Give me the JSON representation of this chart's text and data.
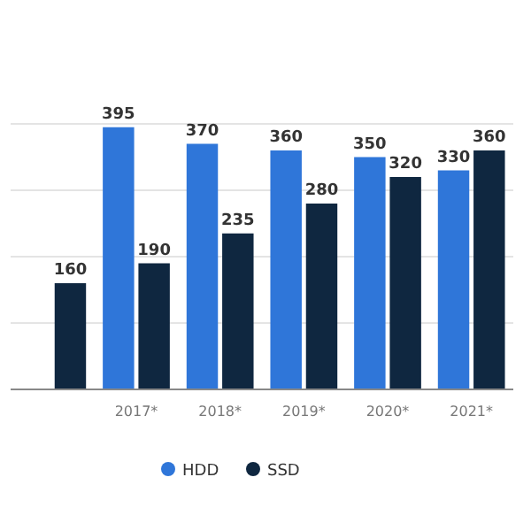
{
  "chart_data": {
    "type": "bar",
    "categories": [
      null,
      "2017*",
      "2018*",
      "2019*",
      "2020*",
      "2021*"
    ],
    "series": [
      {
        "name": "HDD",
        "color": "#2f76d9",
        "values": [
          null,
          395,
          370,
          360,
          350,
          330
        ]
      },
      {
        "name": "SSD",
        "color": "#0f2740",
        "values": [
          160,
          190,
          235,
          280,
          320,
          360
        ]
      }
    ],
    "ylim": [
      0,
      400
    ],
    "yticks": [
      {
        "value": 0,
        "label": null
      },
      {
        "value": 100,
        "label": null
      },
      {
        "value": 200,
        "label": null
      },
      {
        "value": 300,
        "label": null
      },
      {
        "value": 400,
        "label": null
      }
    ],
    "tick_labels": "x",
    "grid": "y",
    "data_labels": true,
    "legend": "bottom"
  }
}
